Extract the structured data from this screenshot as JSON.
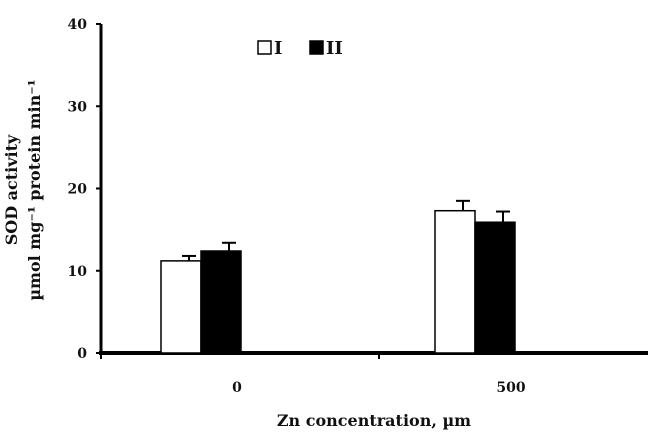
{
  "chart_data": {
    "type": "bar",
    "categories": [
      "0",
      "500"
    ],
    "series": [
      {
        "name": "I",
        "values": [
          11.2,
          17.3
        ],
        "errors": [
          0.6,
          1.2
        ],
        "color": "#ffffff"
      },
      {
        "name": "II",
        "values": [
          12.4,
          15.9
        ],
        "errors": [
          1.0,
          1.3
        ],
        "color": "#000000"
      }
    ],
    "xlabel": "Zn concentration, µm",
    "ylabel": "SOD activity",
    "ylabel_units": "µmol mg⁻¹ protein min⁻¹",
    "ylim": [
      0,
      40
    ],
    "yticks": [
      "0",
      "10",
      "20",
      "30",
      "40"
    ],
    "legend_position": "top",
    "grid": false
  }
}
